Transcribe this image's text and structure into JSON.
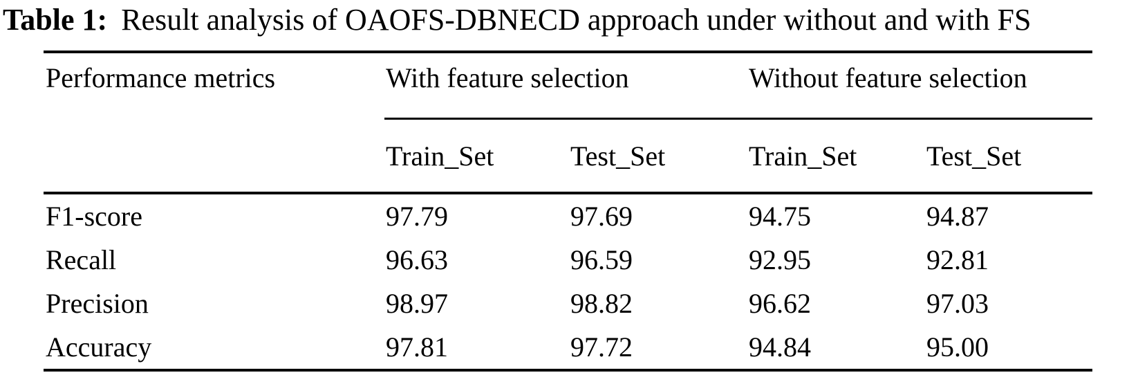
{
  "title": {
    "label": "Table 1:",
    "text": "Result analysis of OAOFS-DBNECD approach under without and with FS"
  },
  "table": {
    "corner_header": "Performance metrics",
    "group_headers": [
      "With feature selection",
      "Without feature selection"
    ],
    "sub_headers": [
      "Train_Set",
      "Test_Set",
      "Train_Set",
      "Test_Set"
    ],
    "rows": [
      {
        "metric": "F1-score",
        "values": [
          "97.79",
          "97.69",
          "94.75",
          "94.87"
        ]
      },
      {
        "metric": "Recall",
        "values": [
          "96.63",
          "96.59",
          "92.95",
          "92.81"
        ]
      },
      {
        "metric": "Precision",
        "values": [
          "98.97",
          "98.82",
          "96.62",
          "97.03"
        ]
      },
      {
        "metric": "Accuracy",
        "values": [
          "97.81",
          "97.72",
          "94.84",
          "95.00"
        ]
      }
    ]
  },
  "chart_data": {
    "type": "table",
    "title": "Table 1: Result analysis of OAOFS-DBNECD approach under without and with FS",
    "columns": [
      "Performance metrics",
      "With feature selection Train_Set",
      "With feature selection Test_Set",
      "Without feature selection Train_Set",
      "Without feature selection Test_Set"
    ],
    "rows": [
      [
        "F1-score",
        97.79,
        97.69,
        94.75,
        94.87
      ],
      [
        "Recall",
        96.63,
        96.59,
        92.95,
        92.81
      ],
      [
        "Precision",
        98.97,
        98.82,
        96.62,
        97.03
      ],
      [
        "Accuracy",
        97.81,
        97.72,
        94.84,
        95.0
      ]
    ]
  },
  "colors": {
    "text": "#000000",
    "background": "#ffffff",
    "rule": "#000000"
  }
}
